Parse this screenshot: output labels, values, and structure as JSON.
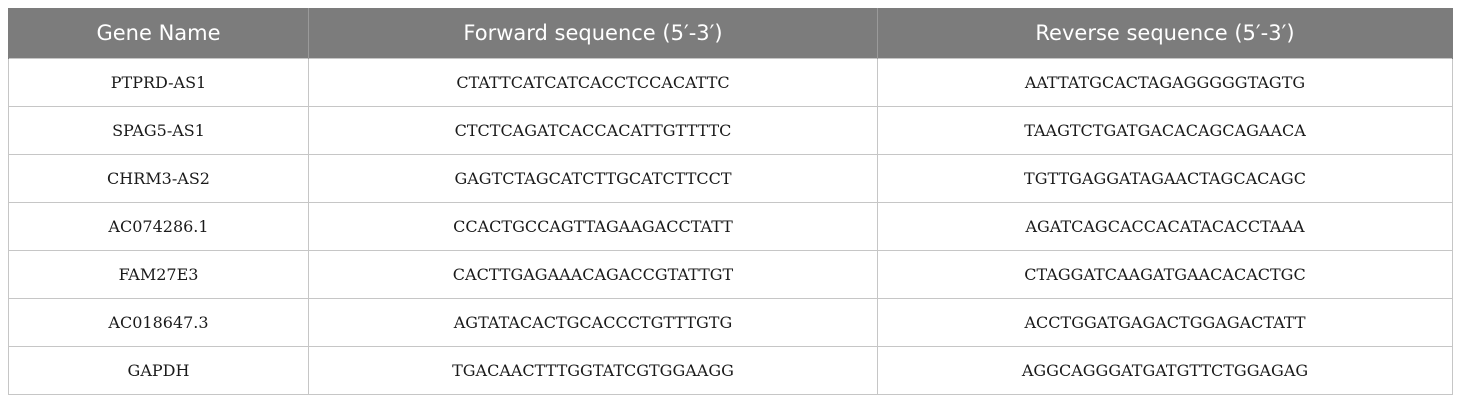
{
  "table": {
    "headers": [
      "Gene Name",
      "Forward sequence (5′-3′)",
      "Reverse sequence (5′-3′)"
    ],
    "rows": [
      [
        "PTPRD-AS1",
        "CTATTCATCATCACCTCCACATTC",
        "AATTATGCACTAGAGGGGGTAGTG"
      ],
      [
        "SPAG5-AS1",
        "CTCTCAGATCACCACATTGTTTTC",
        "TAAGTCTGATGACACAGCAGAACA"
      ],
      [
        "CHRM3-AS2",
        "GAGTCTAGCATCTTGCATCTTCCT",
        "TGTTGAGGATAGAACTAGCACAGC"
      ],
      [
        "AC074286.1",
        "CCACTGCCAGTTAGAAGACCTATT",
        "AGATCAGCACCACATACACCTAAA"
      ],
      [
        "FAM27E3",
        "CACTTGAGAAACAGACCGTATTGT",
        "CTAGGATCAAGATGAACACACTGC"
      ],
      [
        "AC018647.3",
        "AGTATACACTGCACCCTGTTTGTG",
        "ACCTGGATGAGACTGGAGACTATT"
      ],
      [
        "GAPDH",
        "TGACAACTTTGGTATCGTGGAAGG",
        "AGGCAGGGATGATGTTCTGGAGAG"
      ]
    ]
  },
  "colors": {
    "header_background": "#7c7c7c",
    "header_text": "#ffffff",
    "cell_border": "#c6c6c6"
  }
}
